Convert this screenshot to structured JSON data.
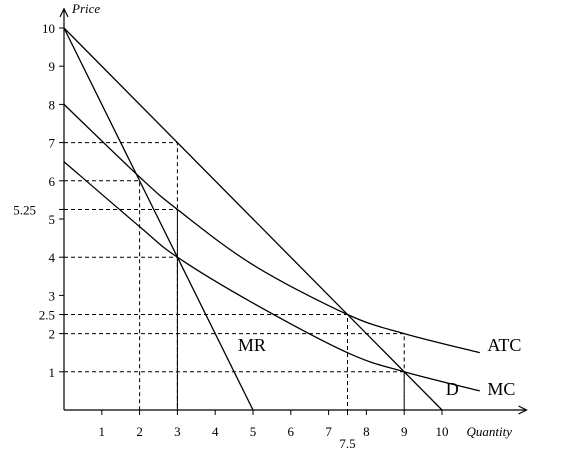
{
  "chart_data": {
    "type": "line",
    "title": "",
    "xlabel": "Quantity",
    "ylabel": "Price",
    "xlim": [
      0,
      12.5
    ],
    "ylim": [
      0,
      10.5
    ],
    "x_ticks": [
      {
        "value": 1,
        "label": "1"
      },
      {
        "value": 2,
        "label": "2"
      },
      {
        "value": 3,
        "label": "3"
      },
      {
        "value": 4,
        "label": "4"
      },
      {
        "value": 5,
        "label": "5"
      },
      {
        "value": 6,
        "label": "6"
      },
      {
        "value": 7,
        "label": "7"
      },
      {
        "value": 7.5,
        "label": "7.5"
      },
      {
        "value": 8,
        "label": "8"
      },
      {
        "value": 9,
        "label": "9"
      },
      {
        "value": 10,
        "label": "10"
      }
    ],
    "y_ticks": [
      {
        "value": 1,
        "label": "1"
      },
      {
        "value": 2,
        "label": "2"
      },
      {
        "value": 2.5,
        "label": "2.5"
      },
      {
        "value": 3,
        "label": "3"
      },
      {
        "value": 4,
        "label": "4"
      },
      {
        "value": 5,
        "label": "5"
      },
      {
        "value": 5.25,
        "label": "5.25"
      },
      {
        "value": 6,
        "label": "6"
      },
      {
        "value": 7,
        "label": "7"
      },
      {
        "value": 8,
        "label": "8"
      },
      {
        "value": 9,
        "label": "9"
      },
      {
        "value": 10,
        "label": "10"
      }
    ],
    "series": [
      {
        "name": "D",
        "points": [
          [
            0,
            10
          ],
          [
            10,
            0
          ]
        ],
        "smooth": false,
        "label_at": [
          10.1,
          0.55
        ]
      },
      {
        "name": "MR",
        "points": [
          [
            0,
            10
          ],
          [
            5,
            0
          ]
        ],
        "smooth": false,
        "label_at": [
          4.6,
          1.7
        ]
      },
      {
        "name": "ATC",
        "points": [
          [
            0,
            8
          ],
          [
            2,
            6.1
          ],
          [
            3,
            5.25
          ],
          [
            5,
            3.8
          ],
          [
            7.5,
            2.5
          ],
          [
            9,
            2
          ],
          [
            11,
            1.5
          ]
        ],
        "smooth": true,
        "label_at": [
          11.2,
          1.7
        ]
      },
      {
        "name": "MC",
        "points": [
          [
            0,
            6.5
          ],
          [
            2,
            4.8
          ],
          [
            3,
            4
          ],
          [
            5,
            2.8
          ],
          [
            7.5,
            1.5
          ],
          [
            9,
            1
          ],
          [
            11,
            0.5
          ]
        ],
        "smooth": true,
        "label_at": [
          11.2,
          0.55
        ]
      }
    ],
    "guides": [
      {
        "x": 2,
        "y": 6
      },
      {
        "x": 3,
        "y": 7
      },
      {
        "x": 3,
        "y": 4
      },
      {
        "x": 3,
        "y": 5.25
      },
      {
        "x": 7.5,
        "y": 2.5
      },
      {
        "x": 9,
        "y": 2
      },
      {
        "x": 9,
        "y": 1
      }
    ],
    "grid": false,
    "legend": "none"
  }
}
